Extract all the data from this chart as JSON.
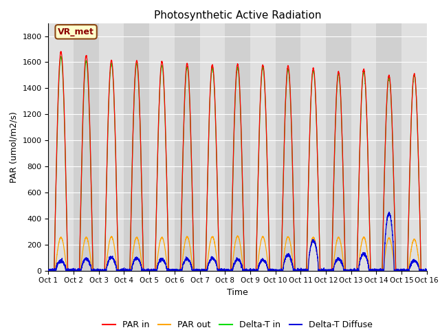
{
  "title": "Photosynthetic Active Radiation",
  "ylabel": "PAR (umol/m2/s)",
  "xlabel": "Time",
  "annotation": "VR_met",
  "ylim": [
    0,
    1900
  ],
  "yticks": [
    0,
    200,
    400,
    600,
    800,
    1000,
    1200,
    1400,
    1600,
    1800
  ],
  "num_days": 15,
  "colors": {
    "par_in": "#ff0000",
    "par_out": "#ffa500",
    "delta_t_in": "#00dd00",
    "delta_t_diffuse": "#0000dd"
  },
  "fig_bg_color": "#ffffff",
  "plot_bg_color": "#e8e8e8",
  "legend_labels": [
    "PAR in",
    "PAR out",
    "Delta-T in",
    "Delta-T Diffuse"
  ],
  "par_in_peaks": [
    1680,
    1650,
    1615,
    1610,
    1605,
    1590,
    1580,
    1585,
    1580,
    1570,
    1555,
    1525,
    1545,
    1500,
    1510
  ],
  "par_out_peaks": [
    255,
    255,
    260,
    255,
    255,
    260,
    260,
    265,
    260,
    260,
    255,
    255,
    255,
    250,
    240
  ],
  "delta_t_in_peaks": [
    1640,
    1610,
    1590,
    1590,
    1575,
    1565,
    1555,
    1560,
    1560,
    1545,
    1535,
    1510,
    1525,
    1485,
    1500
  ],
  "delta_t_diffuse_peaks": [
    75,
    90,
    100,
    95,
    85,
    90,
    95,
    85,
    80,
    120,
    230,
    90,
    130,
    440,
    75
  ],
  "grid_color": "#ffffff",
  "annotation_facecolor": "#ffffcc",
  "annotation_edgecolor": "#8B4513",
  "annotation_textcolor": "#8B0000"
}
